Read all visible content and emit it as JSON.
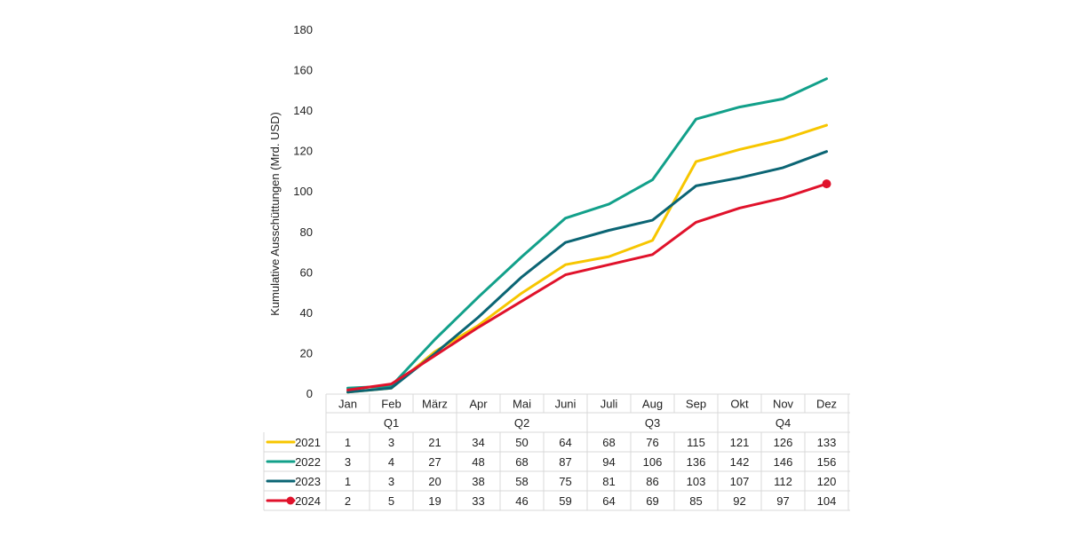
{
  "chart_data": {
    "type": "line",
    "title": "",
    "xlabel": "",
    "ylabel": "Kumulative Ausschüttungen (Mrd. USD)",
    "ylim": [
      0,
      180
    ],
    "yticks": [
      0,
      20,
      40,
      60,
      80,
      100,
      120,
      140,
      160,
      180
    ],
    "grid": false,
    "categories": [
      "Jan",
      "Feb",
      "März",
      "Apr",
      "Mai",
      "Juni",
      "Juli",
      "Aug",
      "Sep",
      "Okt",
      "Nov",
      "Dez"
    ],
    "quarters": [
      "Q1",
      "Q2",
      "Q3",
      "Q4"
    ],
    "series": [
      {
        "name": "2021",
        "color": "#F7C600",
        "values": [
          1,
          3,
          21,
          34,
          50,
          64,
          68,
          76,
          115,
          121,
          126,
          133
        ],
        "end_marker": false
      },
      {
        "name": "2022",
        "color": "#12A08A",
        "values": [
          3,
          4,
          27,
          48,
          68,
          87,
          94,
          106,
          136,
          142,
          146,
          156
        ],
        "end_marker": false
      },
      {
        "name": "2023",
        "color": "#0B6574",
        "values": [
          1,
          3,
          20,
          38,
          58,
          75,
          81,
          86,
          103,
          107,
          112,
          120
        ],
        "end_marker": false
      },
      {
        "name": "2024",
        "color": "#E0122B",
        "values": [
          2,
          5,
          19,
          33,
          46,
          59,
          64,
          69,
          85,
          92,
          97,
          104
        ],
        "end_marker": true
      }
    ]
  }
}
